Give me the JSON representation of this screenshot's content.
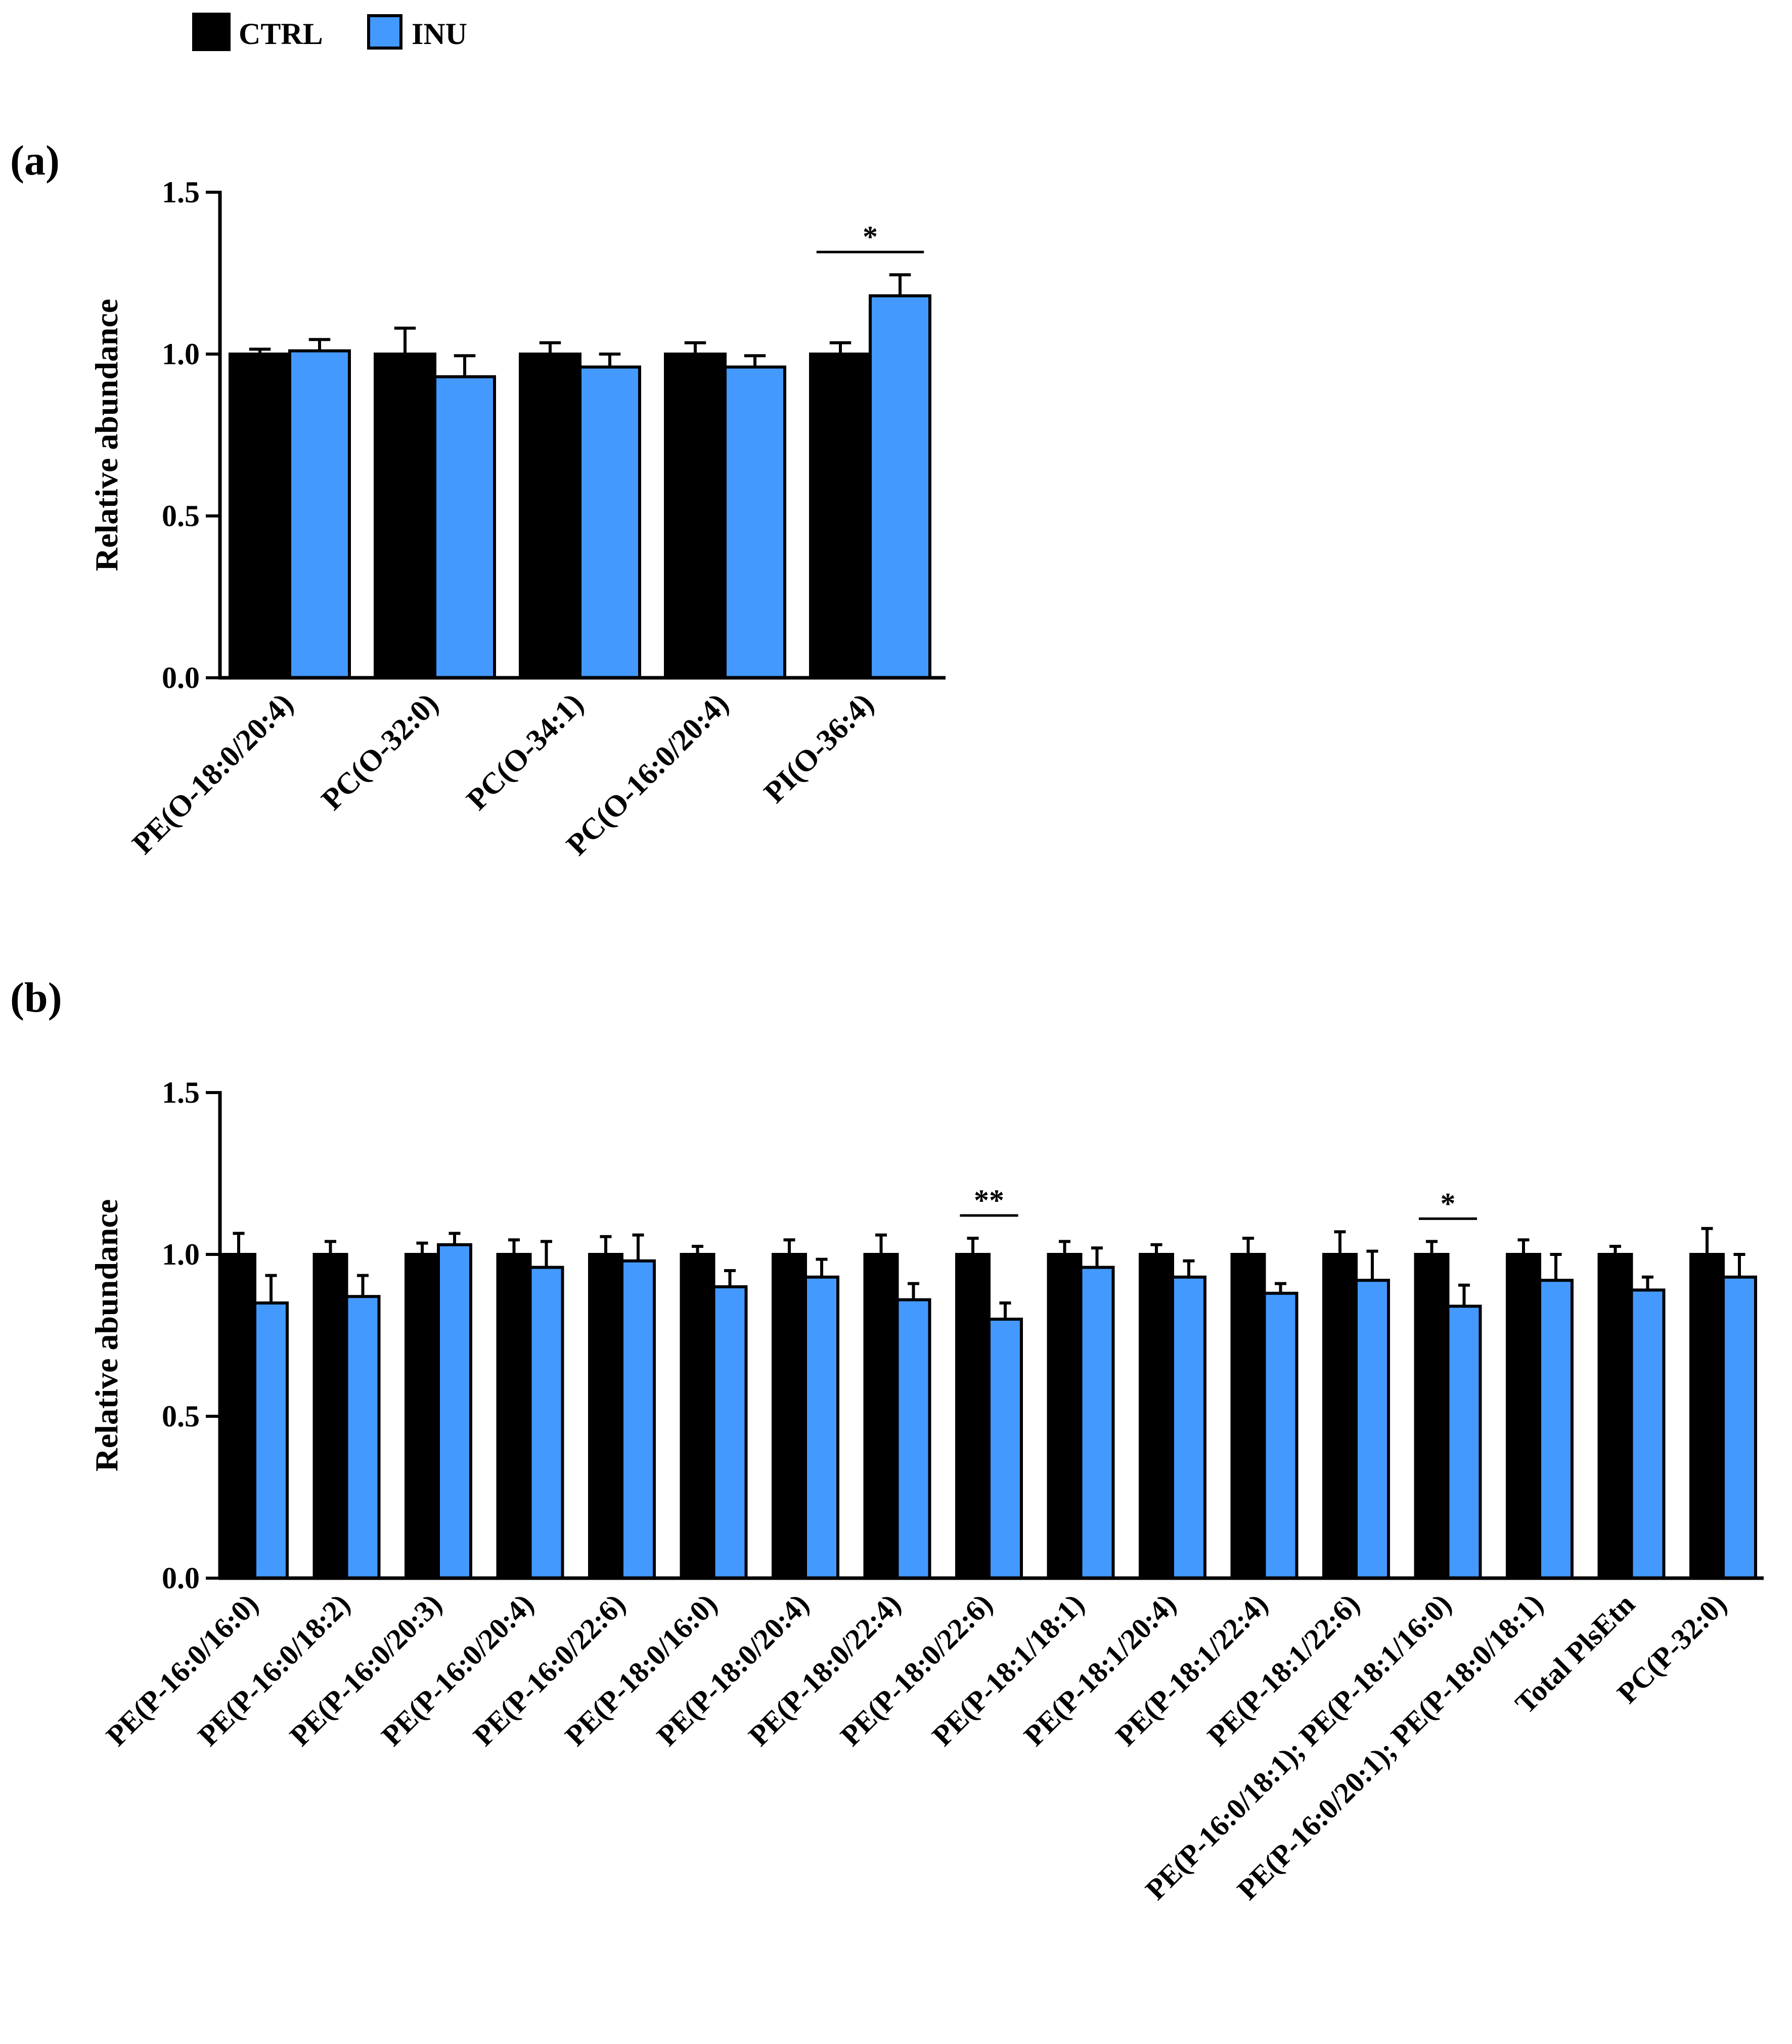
{
  "legend": {
    "items": [
      {
        "label": "CTRL",
        "color": "#000000"
      },
      {
        "label": "INU",
        "color": "#4499ff"
      }
    ]
  },
  "chart_data": [
    {
      "panel_label": "(a)",
      "type": "bar",
      "ylabel": "Relative abundance",
      "ylim": [
        0,
        1.5
      ],
      "yticks": [
        "0.0",
        "0.5",
        "1.0",
        "1.5"
      ],
      "categories": [
        "PE(O-18:0/20:4)",
        "PC(O-32:0)",
        "PC(O-34:1)",
        "PC(O-16:0/20:4)",
        "PI(O-36:4)"
      ],
      "series": [
        {
          "name": "CTRL",
          "values": [
            1.0,
            1.0,
            1.0,
            1.0,
            1.0
          ],
          "errors": [
            0.015,
            0.08,
            0.035,
            0.035,
            0.035
          ]
        },
        {
          "name": "INU",
          "values": [
            1.01,
            0.93,
            0.96,
            0.96,
            1.18
          ],
          "errors": [
            0.035,
            0.065,
            0.04,
            0.035,
            0.065
          ]
        }
      ],
      "significance": [
        {
          "category_index": 4,
          "label": "*"
        }
      ]
    },
    {
      "panel_label": "(b)",
      "type": "bar",
      "ylabel": "Relative abundance",
      "ylim": [
        0,
        1.5
      ],
      "yticks": [
        "0.0",
        "0.5",
        "1.0",
        "1.5"
      ],
      "categories": [
        "PE(P-16:0/16:0)",
        "PE(P-16:0/18:2)",
        "PE(P-16:0/20:3)",
        "PE(P-16:0/20:4)",
        "PE(P-16:0/22:6)",
        "PE(P-18:0/16:0)",
        "PE(P-18:0/20:4)",
        "PE(P-18:0/22:4)",
        "PE(P-18:0/22:6)",
        "PE(P-18:1/18:1)",
        "PE(P-18:1/20:4)",
        "PE(P-18:1/22:4)",
        "PE(P-18:1/22:6)",
        "PE(P-16:0/18:1); PE(P-18:1/16:0)",
        "PE(P-16:0/20:1); PE(P-18:0/18:1)",
        "Total PlsEtn",
        "PC(P-32:0)"
      ],
      "series": [
        {
          "name": "CTRL",
          "values": [
            1.0,
            1.0,
            1.0,
            1.0,
            1.0,
            1.0,
            1.0,
            1.0,
            1.0,
            1.0,
            1.0,
            1.0,
            1.0,
            1.0,
            1.0,
            1.0,
            1.0
          ],
          "errors": [
            0.065,
            0.04,
            0.035,
            0.045,
            0.055,
            0.025,
            0.045,
            0.06,
            0.05,
            0.04,
            0.03,
            0.05,
            0.07,
            0.04,
            0.045,
            0.025,
            0.08
          ]
        },
        {
          "name": "INU",
          "values": [
            0.85,
            0.87,
            1.03,
            0.96,
            0.98,
            0.9,
            0.93,
            0.86,
            0.8,
            0.96,
            0.93,
            0.88,
            0.92,
            0.84,
            0.92,
            0.89,
            0.93
          ],
          "errors": [
            0.085,
            0.065,
            0.035,
            0.08,
            0.08,
            0.05,
            0.055,
            0.05,
            0.05,
            0.06,
            0.05,
            0.03,
            0.09,
            0.065,
            0.08,
            0.04,
            0.07
          ]
        }
      ],
      "significance": [
        {
          "category_index": 8,
          "label": "**"
        },
        {
          "category_index": 13,
          "label": "*"
        }
      ]
    }
  ]
}
